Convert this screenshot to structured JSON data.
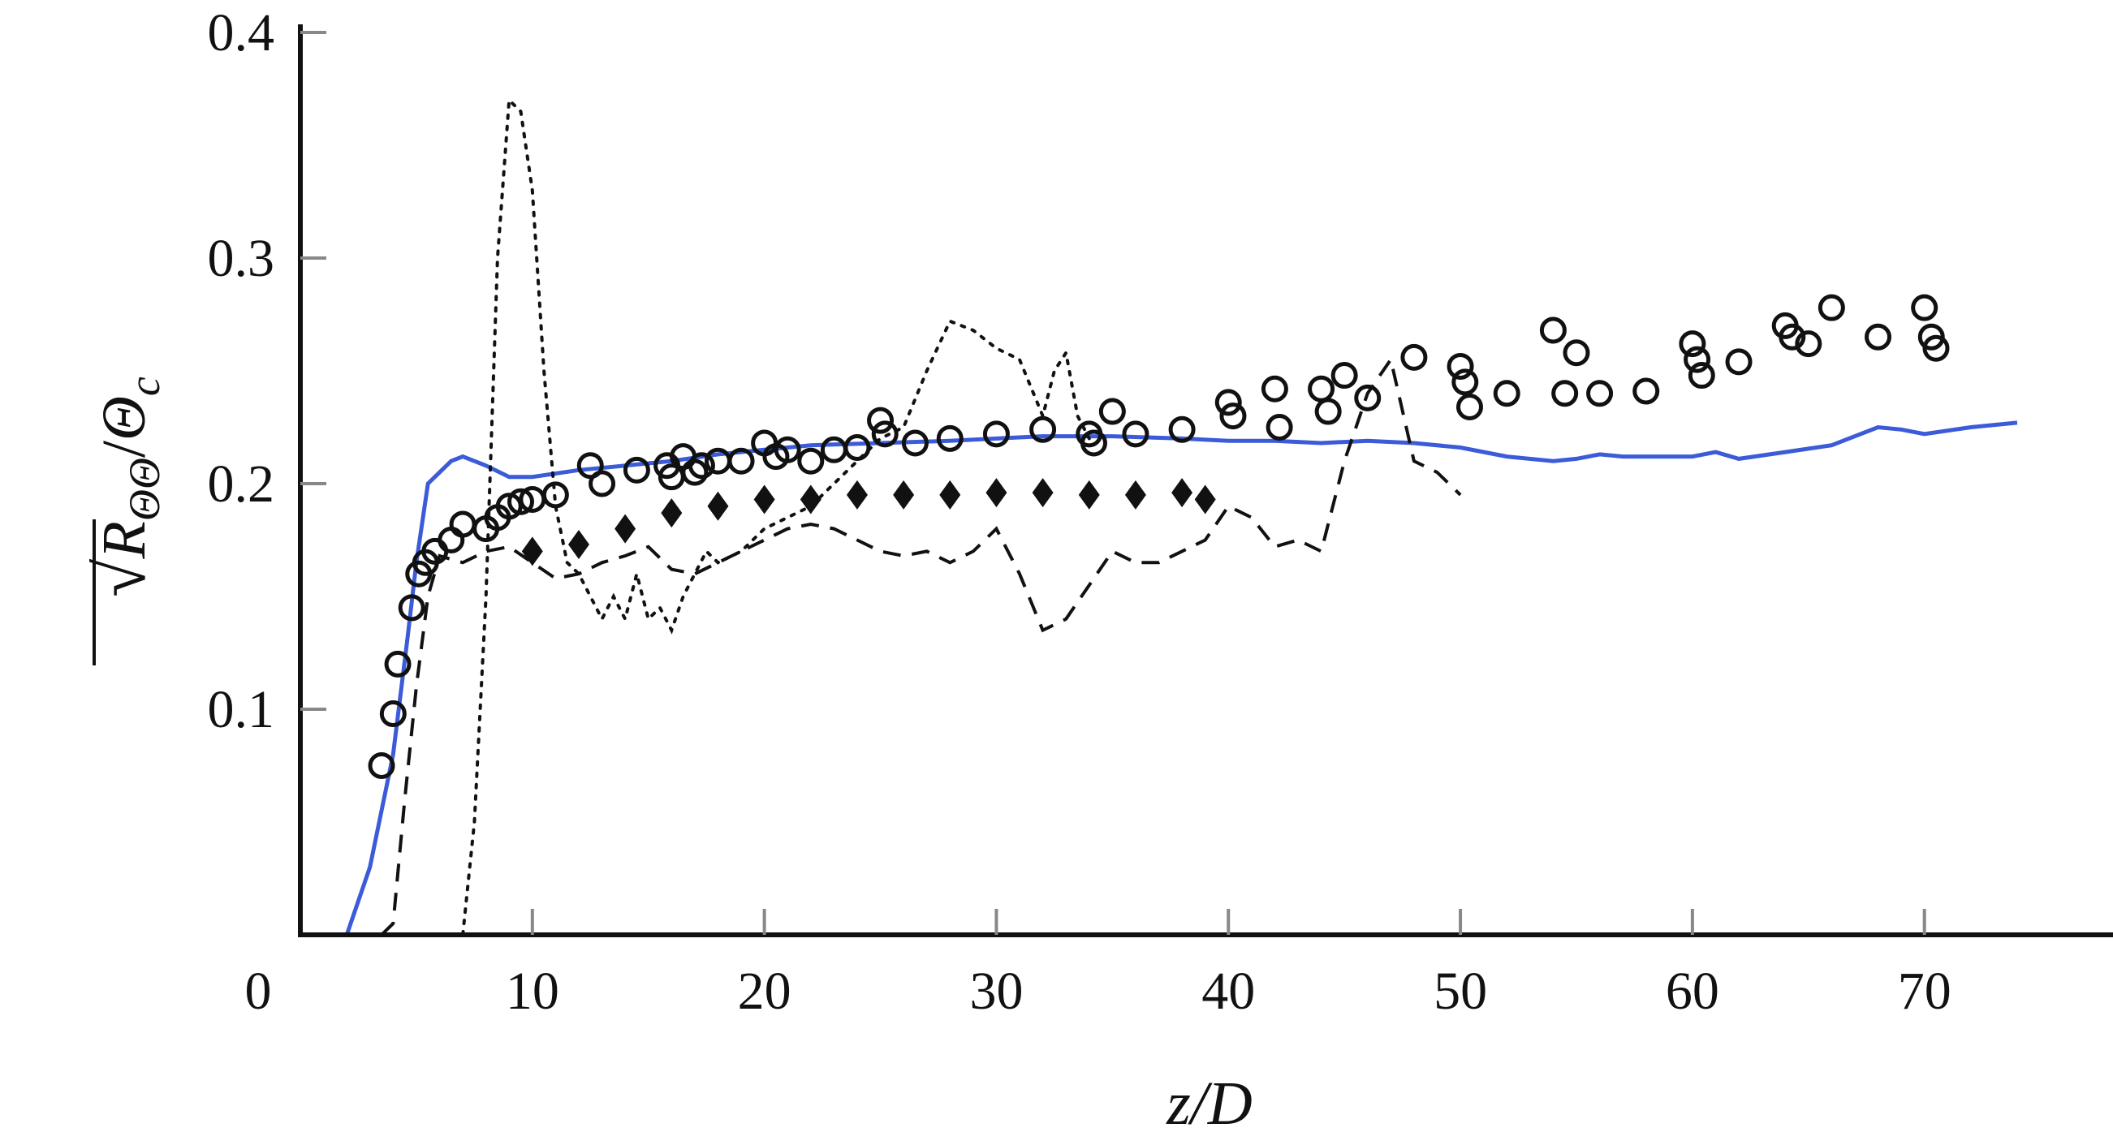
{
  "chart_data": {
    "type": "scatter",
    "title": "",
    "xlabel": "z/D",
    "ylabel_parts": {
      "sym": "R",
      "sub": "ΘΘ",
      "den": "Θ",
      "den_sub": "c"
    },
    "xlim": [
      0,
      75
    ],
    "ylim": [
      0,
      0.4
    ],
    "xticks": [
      0,
      10,
      20,
      30,
      40,
      50,
      60,
      70
    ],
    "yticks": [
      0.1,
      0.2,
      0.3,
      0.4
    ],
    "xtick_labels": [
      "0",
      "10",
      "20",
      "30",
      "40",
      "50",
      "60",
      "70"
    ],
    "ytick_labels": [
      "0.1",
      "0.2",
      "0.3",
      "0.4"
    ],
    "grid": false,
    "legend": "none",
    "series": [
      {
        "style": "solid-line",
        "color": "#3b5bd9",
        "x": [
          0,
          2,
          3,
          4,
          4.6,
          5,
          5.5,
          6,
          6.5,
          7,
          8,
          9,
          10,
          12,
          14,
          16,
          18,
          20,
          22,
          25,
          28,
          30,
          32,
          35,
          38,
          40,
          42,
          44,
          46,
          48,
          50,
          52,
          54,
          55,
          56,
          57,
          58,
          60,
          61,
          62,
          64,
          66,
          68,
          69,
          70,
          72,
          74
        ],
        "y": [
          0,
          0,
          0.03,
          0.08,
          0.13,
          0.165,
          0.2,
          0.205,
          0.21,
          0.212,
          0.208,
          0.203,
          0.203,
          0.206,
          0.208,
          0.21,
          0.213,
          0.215,
          0.217,
          0.218,
          0.219,
          0.22,
          0.221,
          0.221,
          0.22,
          0.219,
          0.219,
          0.218,
          0.219,
          0.218,
          0.216,
          0.212,
          0.21,
          0.211,
          0.213,
          0.212,
          0.212,
          0.212,
          0.214,
          0.211,
          0.214,
          0.217,
          0.225,
          0.224,
          0.222,
          0.225,
          0.227
        ]
      },
      {
        "style": "dashed-line",
        "color": "#111111",
        "x": [
          3.5,
          4,
          4.5,
          5,
          5.5,
          6,
          7,
          8,
          9,
          10,
          11,
          12,
          13,
          14,
          15,
          16,
          17,
          18,
          19,
          20,
          21,
          22,
          23,
          24,
          25,
          26,
          27,
          28,
          29,
          30,
          31,
          32,
          33,
          34,
          35,
          36,
          37,
          38,
          39,
          40,
          41,
          42,
          43,
          44,
          45,
          46,
          47,
          48,
          49,
          50
        ],
        "y": [
          0,
          0.005,
          0.06,
          0.11,
          0.15,
          0.168,
          0.165,
          0.17,
          0.172,
          0.165,
          0.158,
          0.16,
          0.165,
          0.168,
          0.172,
          0.162,
          0.16,
          0.165,
          0.17,
          0.175,
          0.18,
          0.182,
          0.18,
          0.175,
          0.17,
          0.168,
          0.17,
          0.165,
          0.17,
          0.18,
          0.16,
          0.135,
          0.14,
          0.155,
          0.17,
          0.165,
          0.165,
          0.17,
          0.175,
          0.19,
          0.185,
          0.172,
          0.175,
          0.17,
          0.21,
          0.24,
          0.255,
          0.21,
          0.205,
          0.195
        ]
      },
      {
        "style": "dotted-line",
        "color": "#111111",
        "x": [
          7,
          7.5,
          8,
          8.5,
          9,
          9.5,
          10,
          10.5,
          11,
          11.5,
          12,
          12.5,
          13,
          13.5,
          14,
          14.5,
          15,
          15.5,
          16,
          16.5,
          17,
          17.5,
          18,
          19,
          20,
          21,
          22,
          23,
          24,
          25,
          26,
          27,
          28,
          29,
          30,
          31,
          32,
          32.5,
          33,
          33.5,
          34
        ],
        "y": [
          0,
          0.05,
          0.15,
          0.3,
          0.37,
          0.365,
          0.33,
          0.25,
          0.19,
          0.165,
          0.16,
          0.15,
          0.14,
          0.15,
          0.14,
          0.16,
          0.14,
          0.145,
          0.135,
          0.15,
          0.16,
          0.17,
          0.165,
          0.17,
          0.18,
          0.185,
          0.19,
          0.2,
          0.21,
          0.22,
          0.225,
          0.25,
          0.272,
          0.268,
          0.26,
          0.255,
          0.23,
          0.25,
          0.258,
          0.23,
          0.22
        ]
      },
      {
        "style": "open-circles",
        "color": "#111111",
        "x": [
          3.5,
          4,
          4.2,
          4.8,
          5.1,
          5.4,
          5.8,
          6.5,
          7,
          8,
          8.5,
          9,
          9.5,
          10,
          11,
          12.5,
          13,
          14.5,
          15.8,
          16,
          16.5,
          17,
          17.3,
          18,
          19,
          20,
          20.5,
          21,
          22,
          23,
          24,
          25,
          25.2,
          26.5,
          28,
          30,
          32,
          34,
          34.2,
          35,
          36,
          38,
          40,
          40.2,
          42,
          42.2,
          44,
          44.3,
          45,
          46,
          48,
          50,
          50.2,
          50.4,
          52,
          54,
          54.5,
          55,
          56,
          58,
          60,
          60.2,
          60.4,
          62,
          64,
          64.3,
          65,
          66,
          68,
          70,
          70.3,
          70.5
        ],
        "y": [
          0.075,
          0.098,
          0.12,
          0.145,
          0.16,
          0.165,
          0.17,
          0.175,
          0.182,
          0.18,
          0.185,
          0.19,
          0.192,
          0.193,
          0.195,
          0.208,
          0.2,
          0.206,
          0.208,
          0.203,
          0.212,
          0.205,
          0.208,
          0.21,
          0.21,
          0.218,
          0.212,
          0.215,
          0.21,
          0.215,
          0.216,
          0.228,
          0.222,
          0.218,
          0.22,
          0.222,
          0.224,
          0.222,
          0.218,
          0.232,
          0.222,
          0.224,
          0.236,
          0.23,
          0.242,
          0.225,
          0.242,
          0.232,
          0.248,
          0.238,
          0.256,
          0.252,
          0.245,
          0.234,
          0.24,
          0.268,
          0.24,
          0.258,
          0.24,
          0.241,
          0.262,
          0.255,
          0.248,
          0.254,
          0.27,
          0.265,
          0.262,
          0.278,
          0.265,
          0.278,
          0.265,
          0.26
        ]
      },
      {
        "style": "filled-diamonds",
        "color": "#111111",
        "x": [
          10,
          12,
          14,
          16,
          18,
          20,
          22,
          24,
          26,
          28,
          30,
          32,
          34,
          36,
          38,
          39
        ],
        "y": [
          0.17,
          0.173,
          0.18,
          0.187,
          0.19,
          0.193,
          0.193,
          0.195,
          0.195,
          0.195,
          0.196,
          0.196,
          0.195,
          0.195,
          0.196,
          0.193
        ]
      }
    ]
  }
}
